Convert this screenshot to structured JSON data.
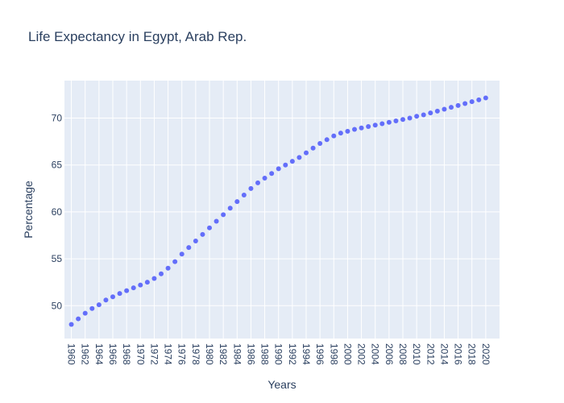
{
  "chart_data": {
    "type": "scatter",
    "title": "Life Expectancy in Egypt, Arab Rep.",
    "xlabel": "Years",
    "ylabel": "Percentage",
    "xlim": [
      1959,
      2022
    ],
    "ylim": [
      46.5,
      74
    ],
    "grid": true,
    "marker_color": "#636efa",
    "plot_bg": "#e5ecf6",
    "x_ticks": [
      1960,
      1962,
      1964,
      1966,
      1968,
      1970,
      1972,
      1974,
      1976,
      1978,
      1980,
      1982,
      1984,
      1986,
      1988,
      1990,
      1992,
      1994,
      1996,
      1998,
      2000,
      2002,
      2004,
      2006,
      2008,
      2010,
      2012,
      2014,
      2016,
      2018,
      2020
    ],
    "y_ticks": [
      50,
      55,
      60,
      65,
      70
    ],
    "x": [
      1960,
      1961,
      1962,
      1963,
      1964,
      1965,
      1966,
      1967,
      1968,
      1969,
      1970,
      1971,
      1972,
      1973,
      1974,
      1975,
      1976,
      1977,
      1978,
      1979,
      1980,
      1981,
      1982,
      1983,
      1984,
      1985,
      1986,
      1987,
      1988,
      1989,
      1990,
      1991,
      1992,
      1993,
      1994,
      1995,
      1996,
      1997,
      1998,
      1999,
      2000,
      2001,
      2002,
      2003,
      2004,
      2005,
      2006,
      2007,
      2008,
      2009,
      2010,
      2011,
      2012,
      2013,
      2014,
      2015,
      2016,
      2017,
      2018,
      2019,
      2020
    ],
    "y": [
      48.0,
      48.6,
      49.2,
      49.7,
      50.1,
      50.6,
      50.95,
      51.3,
      51.6,
      51.9,
      52.2,
      52.5,
      52.9,
      53.4,
      54.0,
      54.7,
      55.5,
      56.2,
      56.9,
      57.6,
      58.3,
      59.0,
      59.7,
      60.4,
      61.1,
      61.8,
      62.5,
      63.1,
      63.6,
      64.1,
      64.6,
      65.0,
      65.4,
      65.8,
      66.3,
      66.8,
      67.3,
      67.7,
      68.1,
      68.4,
      68.6,
      68.8,
      68.95,
      69.1,
      69.25,
      69.4,
      69.55,
      69.7,
      69.85,
      70.0,
      70.2,
      70.35,
      70.55,
      70.75,
      70.95,
      71.15,
      71.35,
      71.55,
      71.75,
      71.95,
      72.15
    ]
  }
}
